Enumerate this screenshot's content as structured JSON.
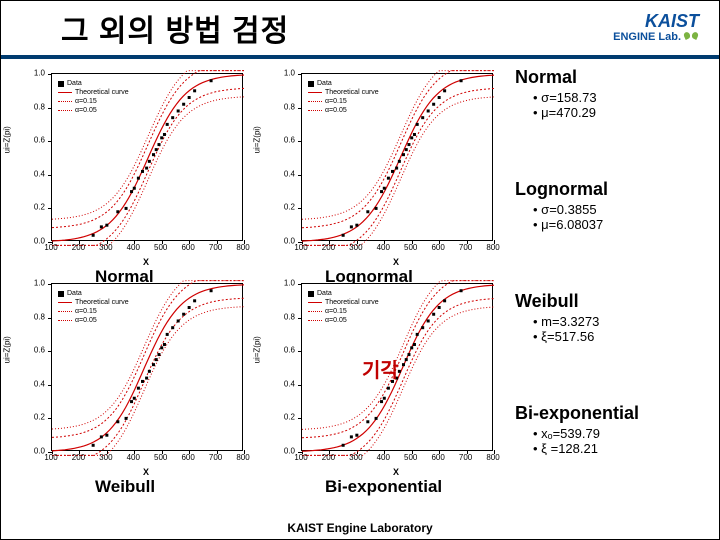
{
  "title": "그 외의 방법 검정",
  "logo": {
    "kaist": "KAIST",
    "lab": "ENGINE Lab."
  },
  "footer": "KAIST Engine Laboratory",
  "reject_label": "기각",
  "chart_common": {
    "y_label": "ui=Z(pi)",
    "x_label": "X",
    "x_min": 100,
    "x_max": 800,
    "y_min": 0.0,
    "y_max": 1.0,
    "x_ticks": [
      100,
      200,
      300,
      400,
      500,
      600,
      700,
      800
    ],
    "y_ticks": [
      "0.0",
      "0.2",
      "0.4",
      "0.6",
      "0.8",
      "1.0"
    ],
    "legend": [
      "Data",
      "Theoretical curve",
      "α=0.15",
      "α=0.05"
    ],
    "colors": {
      "data": "#000000",
      "curve": "#d00000",
      "bounds": "#d00000",
      "grid": "#ffffff",
      "background": "#ffffff"
    },
    "line_width": 1,
    "marker_size": 3,
    "data_x": [
      250,
      280,
      300,
      340,
      370,
      390,
      400,
      415,
      430,
      445,
      455,
      470,
      480,
      490,
      500,
      510,
      520,
      540,
      560,
      580,
      600,
      620,
      680
    ],
    "data_y": [
      0.04,
      0.09,
      0.1,
      0.18,
      0.2,
      0.3,
      0.32,
      0.38,
      0.42,
      0.44,
      0.48,
      0.52,
      0.55,
      0.58,
      0.62,
      0.64,
      0.7,
      0.74,
      0.78,
      0.82,
      0.86,
      0.9,
      0.96
    ]
  },
  "charts": [
    {
      "caption": "Normal",
      "skew": 0
    },
    {
      "caption": "Lognormal",
      "skew": -0.03
    },
    {
      "caption": "Weibull",
      "skew": 0.05
    },
    {
      "caption": "Bi-exponential",
      "skew": -0.06,
      "reject": true
    }
  ],
  "distributions": [
    {
      "name": "Normal",
      "params": [
        "σ=158.73",
        "μ=470.29"
      ]
    },
    {
      "name": "Lognormal",
      "params": [
        "σ=0.3855",
        "μ=6.08037"
      ]
    },
    {
      "name": "Weibull",
      "params": [
        "m=3.3273",
        "ξ=517.56"
      ]
    },
    {
      "name": "Bi-exponential",
      "params": [
        "xₒ=539.79",
        "ξ =128.21"
      ]
    }
  ]
}
